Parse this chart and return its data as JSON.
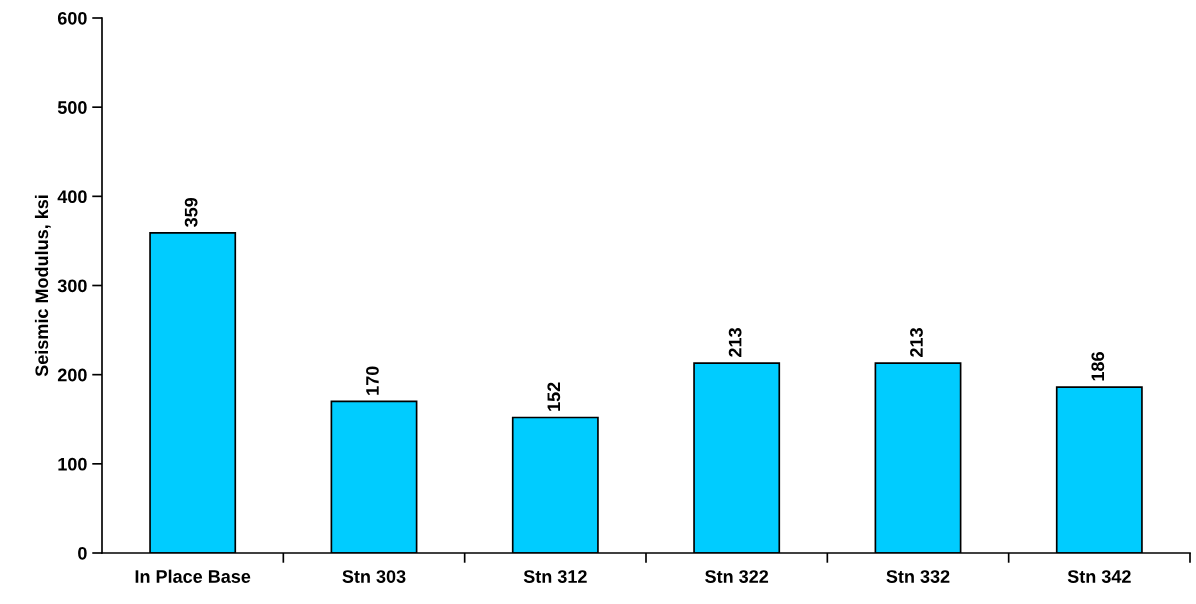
{
  "chart_data": {
    "type": "bar",
    "ylabel": "Seismic Modulus, ksi",
    "categories": [
      "In Place Base",
      "Stn 303",
      "Stn 312",
      "Stn 322",
      "Stn 332",
      "Stn 342"
    ],
    "values": [
      359,
      170,
      152,
      213,
      213,
      186
    ],
    "color": "#00ccff",
    "ylim": [
      0,
      600
    ],
    "yticks": [
      0,
      100,
      200,
      300,
      400,
      500,
      600
    ],
    "data_labels": true,
    "grid": false
  }
}
